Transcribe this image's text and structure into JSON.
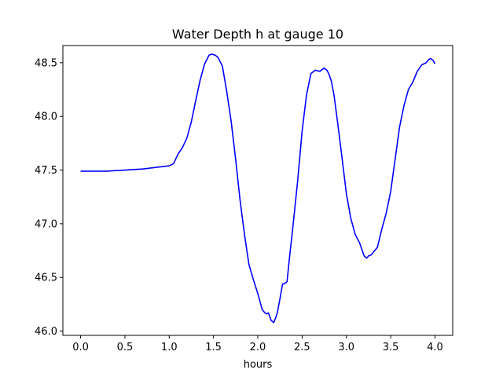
{
  "chart_data": {
    "type": "line",
    "title": "Water Depth h at gauge 10",
    "xlabel": "hours",
    "ylabel": "",
    "xlim": [
      -0.2,
      4.2
    ],
    "ylim": [
      45.96,
      48.66
    ],
    "x_ticks": [
      0.0,
      0.5,
      1.0,
      1.5,
      2.0,
      2.5,
      3.0,
      3.5,
      4.0
    ],
    "x_tick_labels": [
      "0.0",
      "0.5",
      "1.0",
      "1.5",
      "2.0",
      "2.5",
      "3.0",
      "3.5",
      "4.0"
    ],
    "y_ticks": [
      46.0,
      46.5,
      47.0,
      47.5,
      48.0,
      48.5
    ],
    "y_tick_labels": [
      "46.0",
      "46.5",
      "47.0",
      "47.5",
      "48.0",
      "48.5"
    ],
    "grid": false,
    "series": [
      {
        "color": "#0000ff",
        "x": [
          0.0,
          0.1,
          0.2,
          0.3,
          0.4,
          0.5,
          0.6,
          0.7,
          0.8,
          0.9,
          1.0,
          1.05,
          1.1,
          1.15,
          1.2,
          1.25,
          1.3,
          1.35,
          1.4,
          1.45,
          1.48,
          1.5,
          1.52,
          1.55,
          1.6,
          1.65,
          1.7,
          1.75,
          1.8,
          1.85,
          1.9,
          1.95,
          2.0,
          2.05,
          2.08,
          2.1,
          2.12,
          2.15,
          2.18,
          2.2,
          2.22,
          2.25,
          2.28,
          2.3,
          2.33,
          2.36,
          2.4,
          2.45,
          2.5,
          2.55,
          2.6,
          2.65,
          2.7,
          2.75,
          2.78,
          2.8,
          2.83,
          2.86,
          2.9,
          2.95,
          3.0,
          3.05,
          3.1,
          3.15,
          3.2,
          3.23,
          3.25,
          3.28,
          3.3,
          3.35,
          3.4,
          3.45,
          3.5,
          3.55,
          3.6,
          3.65,
          3.7,
          3.75,
          3.8,
          3.85,
          3.9,
          3.93,
          3.95,
          3.98,
          4.0
        ],
        "y": [
          47.49,
          47.49,
          47.49,
          47.49,
          47.495,
          47.5,
          47.505,
          47.51,
          47.52,
          47.53,
          47.54,
          47.56,
          47.65,
          47.71,
          47.8,
          47.95,
          48.15,
          48.34,
          48.49,
          48.57,
          48.58,
          48.575,
          48.57,
          48.55,
          48.47,
          48.23,
          47.95,
          47.6,
          47.22,
          46.9,
          46.62,
          46.48,
          46.35,
          46.2,
          46.17,
          46.16,
          46.17,
          46.1,
          46.08,
          46.12,
          46.17,
          46.3,
          46.44,
          46.44,
          46.46,
          46.7,
          47.0,
          47.4,
          47.86,
          48.2,
          48.4,
          48.43,
          48.42,
          48.45,
          48.43,
          48.4,
          48.33,
          48.2,
          47.95,
          47.62,
          47.28,
          47.05,
          46.9,
          46.82,
          46.7,
          46.68,
          46.7,
          46.71,
          46.73,
          46.78,
          46.95,
          47.1,
          47.3,
          47.6,
          47.9,
          48.1,
          48.25,
          48.32,
          48.42,
          48.48,
          48.5,
          48.53,
          48.54,
          48.52,
          48.49
        ]
      }
    ]
  }
}
